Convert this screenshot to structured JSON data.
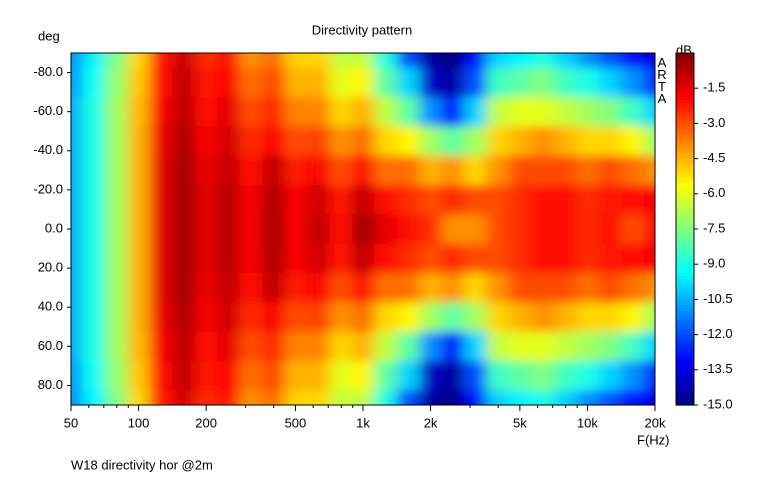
{
  "chart_data": {
    "type": "heatmap",
    "title": "Directivity pattern",
    "y_label": "deg",
    "x_label": "F(Hz)",
    "colorbar_label": "dB",
    "watermark": "ARTA",
    "footer": "W18 directivity hor @2m",
    "colormap": "jet",
    "x_log": true,
    "x": [
      50,
      63,
      80,
      100,
      125,
      160,
      200,
      250,
      315,
      400,
      500,
      630,
      800,
      1000,
      1250,
      1600,
      2000,
      2500,
      3150,
      4000,
      5000,
      6300,
      8000,
      10000,
      12500,
      16000,
      20000
    ],
    "y": [
      -90,
      -75,
      -60,
      -45,
      -30,
      -15,
      0,
      15,
      30,
      45,
      60,
      75,
      90
    ],
    "z": [
      [
        -11,
        -9.5,
        -7.5,
        -5,
        -2.2,
        -1.2,
        -2.5,
        -2,
        -4,
        -3.5,
        -5,
        -5,
        -6.5,
        -6.5,
        -9,
        -12,
        -14.5,
        -15,
        -13,
        -10,
        -9.5,
        -9,
        -10,
        -11,
        -12,
        -13,
        -13.5
      ],
      [
        -10.8,
        -9.2,
        -7.2,
        -4.8,
        -2,
        -1,
        -2.2,
        -1.8,
        -3.5,
        -3,
        -4.5,
        -4.5,
        -6,
        -5.5,
        -8,
        -10,
        -14,
        -14.5,
        -12,
        -8.5,
        -8,
        -7.5,
        -8.5,
        -9,
        -10,
        -11,
        -12.5
      ],
      [
        -10.5,
        -9,
        -7,
        -4.6,
        -1.8,
        -0.9,
        -2,
        -1.5,
        -3,
        -2.5,
        -3.8,
        -3.8,
        -5,
        -4.5,
        -6.5,
        -8,
        -11,
        -13,
        -10,
        -6.5,
        -6,
        -6,
        -6.5,
        -7,
        -7.5,
        -8.5,
        -10
      ],
      [
        -10.5,
        -9,
        -7,
        -4.5,
        -1.6,
        -0.7,
        -1.8,
        -1.2,
        -2.5,
        -1.8,
        -3,
        -2.8,
        -4,
        -3.5,
        -5,
        -5.5,
        -7,
        -8,
        -7,
        -5,
        -4.5,
        -4,
        -4.5,
        -5,
        -5,
        -5.5,
        -7
      ],
      [
        -10.5,
        -9,
        -7,
        -4.5,
        -1.5,
        -0.6,
        -1.6,
        -1,
        -2,
        -1,
        -2.3,
        -1.8,
        -3,
        -2,
        -3.5,
        -3.5,
        -4.5,
        -4,
        -5,
        -4,
        -3,
        -3,
        -3,
        -3.5,
        -3,
        -3.5,
        -4
      ],
      [
        -10.5,
        -9,
        -7,
        -4.5,
        -1.5,
        -0.5,
        -1.5,
        -0.8,
        -1.8,
        -0.7,
        -1.8,
        -1.2,
        -2.2,
        -1,
        -2,
        -2.5,
        -3,
        -2.5,
        -3,
        -3,
        -2.5,
        -2,
        -2,
        -2.5,
        -2.2,
        -2,
        -1.8
      ],
      [
        -10.5,
        -9,
        -7,
        -4.5,
        -1.5,
        -0.5,
        -1.5,
        -0.8,
        -1.8,
        -0.6,
        -1.8,
        -1,
        -2,
        -0.5,
        -1.5,
        -2,
        -2.5,
        -4,
        -4,
        -3,
        -2.5,
        -2,
        -2,
        -2.5,
        -2,
        -3,
        -2
      ],
      [
        -10.5,
        -9,
        -7,
        -4.5,
        -1.5,
        -0.5,
        -1.5,
        -0.8,
        -1.8,
        -0.7,
        -1.8,
        -1.2,
        -2.2,
        -1,
        -2,
        -2.5,
        -3,
        -2.5,
        -3,
        -3,
        -2.5,
        -2,
        -2,
        -2.5,
        -2.2,
        -2,
        -1.8
      ],
      [
        -10.5,
        -9,
        -7,
        -4.5,
        -1.5,
        -0.6,
        -1.6,
        -1,
        -2,
        -1,
        -2.3,
        -1.8,
        -3,
        -2,
        -3.5,
        -3.5,
        -4.5,
        -4,
        -5,
        -4,
        -3,
        -3,
        -3,
        -3.5,
        -3,
        -3.5,
        -4
      ],
      [
        -10.5,
        -9,
        -7,
        -4.5,
        -1.6,
        -0.7,
        -1.8,
        -1.2,
        -2.5,
        -1.8,
        -3,
        -2.8,
        -4,
        -3.5,
        -5,
        -5.5,
        -7,
        -8,
        -7,
        -5,
        -4.5,
        -4,
        -4.5,
        -5,
        -5,
        -5.5,
        -7
      ],
      [
        -10.5,
        -9,
        -7,
        -4.6,
        -1.8,
        -0.9,
        -2,
        -1.5,
        -3,
        -2.5,
        -3.8,
        -3.8,
        -5,
        -4.5,
        -6.5,
        -8,
        -11,
        -13,
        -10,
        -6.5,
        -6,
        -6,
        -6.5,
        -7,
        -7.5,
        -8.5,
        -10
      ],
      [
        -10.8,
        -9.2,
        -7.2,
        -4.8,
        -2,
        -1,
        -2.2,
        -1.8,
        -3.5,
        -3,
        -4.5,
        -4.5,
        -6,
        -5.5,
        -8,
        -10,
        -14,
        -14.5,
        -12,
        -8.5,
        -8,
        -7.5,
        -8.5,
        -9,
        -10,
        -11,
        -12.5
      ],
      [
        -11,
        -9.5,
        -7.5,
        -5,
        -2.2,
        -1.2,
        -2.5,
        -2,
        -4,
        -3.5,
        -5,
        -5,
        -6.5,
        -6.5,
        -9,
        -12,
        -14.5,
        -15,
        -13,
        -10,
        -9.5,
        -9,
        -10,
        -11,
        -12,
        -13,
        -13.5
      ]
    ],
    "xlim": [
      50,
      20000
    ],
    "xticks": [
      50,
      100,
      200,
      500,
      {
        "value": 1000,
        "label": "1k"
      },
      {
        "value": 2000,
        "label": "2k"
      },
      {
        "value": 5000,
        "label": "5k"
      },
      {
        "value": 10000,
        "label": "10k"
      },
      {
        "value": 20000,
        "label": "20k"
      }
    ],
    "xminorticks": [
      60,
      70,
      80,
      90,
      300,
      400,
      600,
      700,
      800,
      900,
      3000,
      4000,
      6000,
      7000,
      8000,
      9000
    ],
    "ylim": [
      -90,
      90
    ],
    "yticks": [
      {
        "value": -80,
        "label": "-80.0"
      },
      {
        "value": -60,
        "label": "-60.0"
      },
      {
        "value": -40,
        "label": "-40.0"
      },
      {
        "value": -20,
        "label": "-20.0"
      },
      {
        "value": 0,
        "label": "0.0"
      },
      {
        "value": 20,
        "label": "20.0"
      },
      {
        "value": 40,
        "label": "40.0"
      },
      {
        "value": 60,
        "label": "60.0"
      },
      {
        "value": 80,
        "label": "80.0"
      }
    ],
    "zlim": [
      -15,
      0
    ],
    "zticks": [
      -1.5,
      {
        "value": -3,
        "label": "-3.0"
      },
      -4.5,
      {
        "value": -6,
        "label": "-6.0"
      },
      -7.5,
      {
        "value": -9,
        "label": "-9.0"
      },
      -10.5,
      {
        "value": -12,
        "label": "-12.0"
      },
      -13.5,
      {
        "value": -15,
        "label": "-15.0"
      }
    ]
  }
}
